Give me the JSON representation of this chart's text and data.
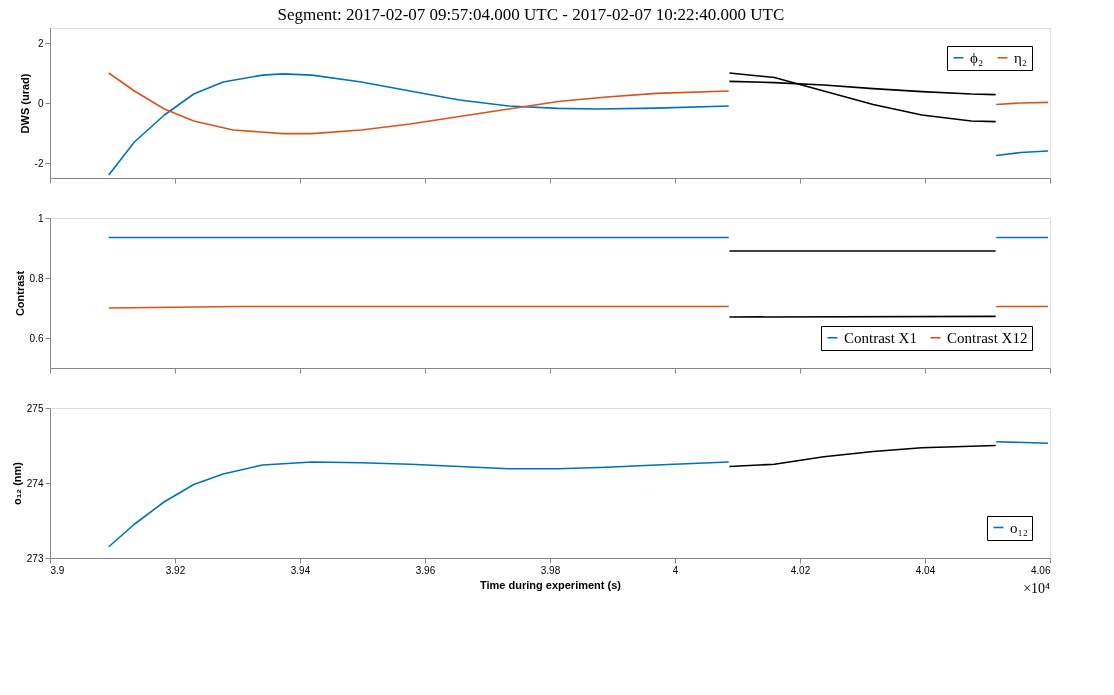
{
  "chart_data": [
    {
      "type": "line",
      "title": "Segment: 2017-02-07 09:57:04.000 UTC - 2017-02-07 10:22:40.000 UTC",
      "ylabel": "DWS (urad)",
      "xlim": [
        3.9,
        4.06
      ],
      "xticks": [
        3.9,
        3.92,
        3.94,
        3.96,
        3.98,
        4,
        4.02,
        4.04,
        4.06
      ],
      "ylim": [
        -2.5,
        2.5
      ],
      "yticks": [
        -2,
        0,
        2
      ],
      "tick_labels": "y",
      "grid": false,
      "legend": "top right",
      "line_style": "solid",
      "marker": "none",
      "series": [
        {
          "name": "ϕ₂",
          "color": "#0072bd",
          "x": [
            3.9094,
            3.9135,
            3.9183,
            3.923,
            3.9277,
            3.934,
            3.9372,
            3.9419,
            3.9498,
            3.9576,
            3.9655,
            3.9734,
            3.9813,
            3.9876,
            3.997,
            4.0086
          ],
          "values": [
            -2.4,
            -1.3,
            -0.4,
            0.3,
            0.7,
            0.93,
            0.97,
            0.93,
            0.7,
            0.4,
            0.1,
            -0.1,
            -0.18,
            -0.2,
            -0.17,
            -0.1
          ]
        },
        {
          "name": "η₂",
          "color": "#d95319",
          "x": [
            3.9094,
            3.9135,
            3.9183,
            3.923,
            3.9293,
            3.9372,
            3.9419,
            3.9498,
            3.9576,
            3.9655,
            3.9734,
            3.9813,
            3.9891,
            3.997,
            4.0086
          ],
          "values": [
            1.0,
            0.4,
            -0.2,
            -0.6,
            -0.9,
            -1.02,
            -1.02,
            -0.9,
            -0.7,
            -0.45,
            -0.2,
            0.05,
            0.2,
            0.32,
            0.4
          ]
        },
        {
          "color": "#000000",
          "x": [
            4.0087,
            4.0159,
            4.0238,
            4.0317,
            4.0395,
            4.0474,
            4.0513
          ],
          "values": [
            1.0,
            0.85,
            0.4,
            -0.05,
            -0.4,
            -0.6,
            -0.62
          ]
        },
        {
          "color": "#000000",
          "x": [
            4.0087,
            4.0159,
            4.0238,
            4.0317,
            4.0395,
            4.0474,
            4.0513
          ],
          "values": [
            0.72,
            0.68,
            0.6,
            0.48,
            0.38,
            0.3,
            0.28
          ]
        },
        {
          "color": "#0072bd",
          "x": [
            4.0514,
            4.0553,
            4.0597
          ],
          "values": [
            -1.75,
            -1.65,
            -1.6
          ]
        },
        {
          "color": "#d95319",
          "x": [
            4.0514,
            4.0553,
            4.0597
          ],
          "values": [
            -0.05,
            0.0,
            0.02
          ]
        }
      ]
    },
    {
      "type": "line",
      "ylabel": "Contrast",
      "xlim": [
        3.9,
        4.06
      ],
      "xticks": [
        3.9,
        3.92,
        3.94,
        3.96,
        3.98,
        4,
        4.02,
        4.04,
        4.06
      ],
      "ylim": [
        0.5,
        1
      ],
      "yticks": [
        0.6,
        0.8,
        1
      ],
      "tick_labels": "y",
      "grid": false,
      "legend": "bottom right",
      "line_style": "solid",
      "marker": "none",
      "series": [
        {
          "name": "Contrast X1",
          "color": "#0072bd",
          "x": [
            3.9094,
            4.0086
          ],
          "values": [
            0.935,
            0.935
          ]
        },
        {
          "name": "Contrast X12",
          "color": "#d95319",
          "x": [
            3.9094,
            3.93,
            4.0086
          ],
          "values": [
            0.7,
            0.705,
            0.705
          ]
        },
        {
          "color": "#000000",
          "x": [
            4.0087,
            4.0513
          ],
          "values": [
            0.89,
            0.89
          ]
        },
        {
          "color": "#000000",
          "x": [
            4.0087,
            4.0513
          ],
          "values": [
            0.67,
            0.672
          ]
        },
        {
          "color": "#0072bd",
          "x": [
            4.0514,
            4.0597
          ],
          "values": [
            0.935,
            0.935
          ]
        },
        {
          "color": "#d95319",
          "x": [
            4.0514,
            4.0597
          ],
          "values": [
            0.705,
            0.705
          ]
        }
      ]
    },
    {
      "type": "line",
      "ylabel": "o₁₂ (nm)",
      "xlabel": "Time during experiment (s)",
      "annotations": [
        "×10⁴"
      ],
      "xlim": [
        3.9,
        4.06
      ],
      "xticks": [
        3.9,
        3.92,
        3.94,
        3.96,
        3.98,
        4,
        4.02,
        4.04,
        4.06
      ],
      "ylim": [
        273,
        275
      ],
      "yticks": [
        273,
        274,
        275
      ],
      "grid": false,
      "legend": "bottom right",
      "line_style": "solid",
      "marker": "none",
      "series": [
        {
          "name": "o₁₂",
          "color": "#0072bd",
          "x": [
            3.9094,
            3.9135,
            3.9183,
            3.923,
            3.9277,
            3.934,
            3.9419,
            3.9498,
            3.9576,
            3.9655,
            3.9734,
            3.9813,
            3.9891,
            3.997,
            4.0086
          ],
          "values": [
            273.15,
            273.45,
            273.75,
            273.98,
            274.12,
            274.24,
            274.28,
            274.27,
            274.25,
            274.22,
            274.19,
            274.19,
            274.21,
            274.24,
            274.28
          ]
        },
        {
          "color": "#000000",
          "x": [
            4.0087,
            4.0159,
            4.0238,
            4.0317,
            4.0395,
            4.0474,
            4.0513
          ],
          "values": [
            274.22,
            274.25,
            274.35,
            274.42,
            274.47,
            274.49,
            274.5
          ]
        },
        {
          "color": "#0072bd",
          "x": [
            4.0514,
            4.0597
          ],
          "values": [
            274.55,
            274.53
          ]
        }
      ]
    }
  ]
}
